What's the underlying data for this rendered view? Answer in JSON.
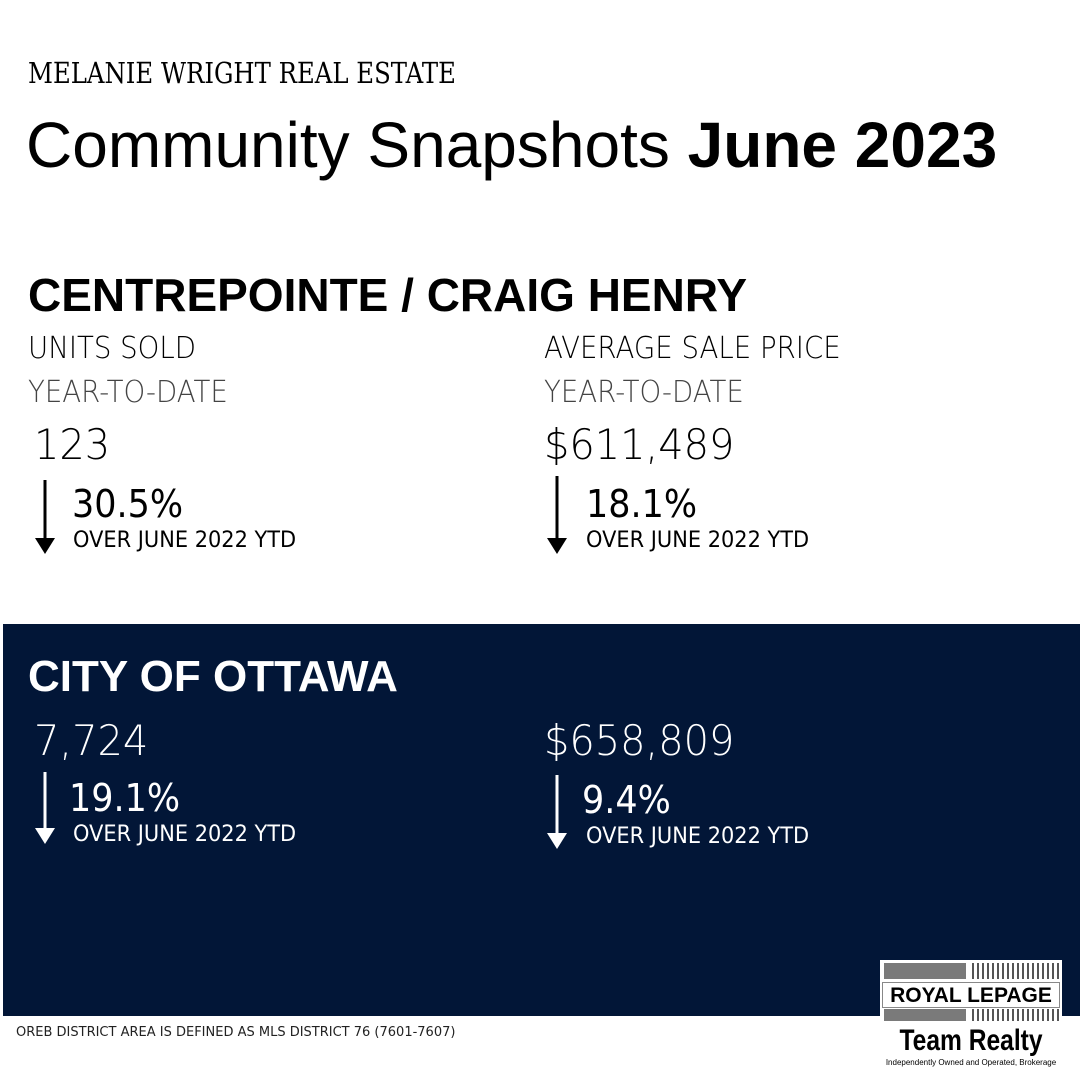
{
  "brand": "MELANIE WRIGHT REAL ESTATE",
  "title": {
    "regular": "Community Snapshots",
    "bold": "June 2023"
  },
  "community": {
    "name": "CENTREPOINTE / CRAIG HENRY",
    "units": {
      "label": "UNITS SOLD",
      "sublabel": "YEAR-TO-DATE",
      "value": "123",
      "change": "30.5%",
      "change_label": "OVER JUNE 2022 YTD",
      "direction": "down"
    },
    "price": {
      "label": "AVERAGE SALE PRICE",
      "sublabel": "YEAR-TO-DATE",
      "value": "$611,489",
      "change": "18.1%",
      "change_label": "OVER JUNE 2022 YTD",
      "direction": "down"
    }
  },
  "city": {
    "name": "CITY OF OTTAWA",
    "units": {
      "value": "7,724",
      "change": "19.1%",
      "change_label": "OVER JUNE 2022 YTD",
      "direction": "down"
    },
    "price": {
      "value": "$658,809",
      "change": "9.4%",
      "change_label": "OVER JUNE 2022 YTD",
      "direction": "down"
    }
  },
  "footnote": "OREB DISTRICT AREA IS DEFINED AS MLS DISTRICT 76 (7601-7607)",
  "logo": {
    "line1": "ROYAL LEPAGE",
    "line2": "Team Realty",
    "line3": "Independently Owned and Operated, Brokerage"
  },
  "colors": {
    "navy": "#021637",
    "text": "#000000",
    "inverse": "#ffffff"
  },
  "icons": {
    "change": "arrow-down-icon"
  }
}
